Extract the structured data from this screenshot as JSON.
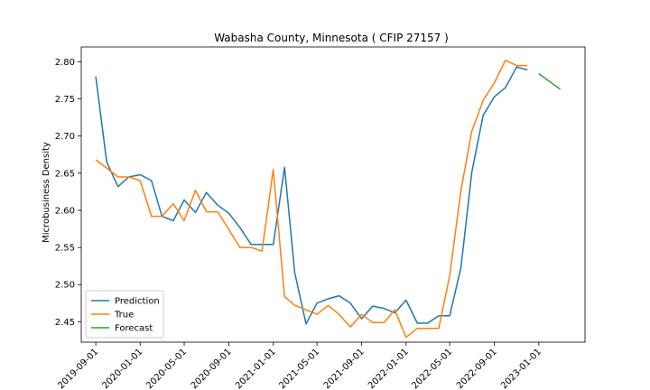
{
  "chart_data": {
    "type": "line",
    "title": "Wabasha County, Minnesota ( CFIP 27157 )",
    "xlabel": "",
    "ylabel": "Microbusiness Density",
    "xlim": [
      "2019-07-23",
      "2023-05-08"
    ],
    "ylim": [
      2.4225,
      2.82
    ],
    "x_ticks": [
      "2019-09-01",
      "2020-01-01",
      "2020-05-01",
      "2020-09-01",
      "2021-01-01",
      "2021-05-01",
      "2021-09-01",
      "2022-01-01",
      "2022-05-01",
      "2022-09-01",
      "2023-01-01"
    ],
    "y_ticks": [
      2.45,
      2.5,
      2.55,
      2.6,
      2.65,
      2.7,
      2.75,
      2.8
    ],
    "y_tick_labels": [
      "2.45",
      "2.50",
      "2.55",
      "2.60",
      "2.65",
      "2.70",
      "2.75",
      "2.80"
    ],
    "legend_position": "lower-left",
    "series": [
      {
        "name": "Prediction",
        "color": "#1f77b4",
        "x": [
          "2019-09-01",
          "2019-10-01",
          "2019-11-01",
          "2019-12-01",
          "2020-01-01",
          "2020-02-01",
          "2020-03-01",
          "2020-04-01",
          "2020-05-01",
          "2020-06-01",
          "2020-07-01",
          "2020-08-01",
          "2020-09-01",
          "2020-10-01",
          "2020-11-01",
          "2020-12-01",
          "2021-01-01",
          "2021-02-01",
          "2021-03-01",
          "2021-04-01",
          "2021-05-01",
          "2021-06-01",
          "2021-07-01",
          "2021-08-01",
          "2021-09-01",
          "2021-10-01",
          "2021-11-01",
          "2021-12-01",
          "2022-01-01",
          "2022-02-01",
          "2022-03-01",
          "2022-04-01",
          "2022-05-01",
          "2022-06-01",
          "2022-07-01",
          "2022-08-01",
          "2022-09-01",
          "2022-10-01",
          "2022-11-01",
          "2022-12-01"
        ],
        "values": [
          2.78,
          2.665,
          2.632,
          2.645,
          2.648,
          2.64,
          2.592,
          2.586,
          2.614,
          2.597,
          2.624,
          2.607,
          2.596,
          2.577,
          2.554,
          2.554,
          2.554,
          2.658,
          2.516,
          2.447,
          2.475,
          2.481,
          2.485,
          2.475,
          2.454,
          2.471,
          2.468,
          2.462,
          2.479,
          2.448,
          2.448,
          2.458,
          2.458,
          2.523,
          2.652,
          2.728,
          2.753,
          2.765,
          2.793,
          2.789
        ]
      },
      {
        "name": "True",
        "color": "#ff7f0e",
        "x": [
          "2019-09-01",
          "2019-10-01",
          "2019-11-01",
          "2019-12-01",
          "2020-01-01",
          "2020-02-01",
          "2020-03-01",
          "2020-04-01",
          "2020-05-01",
          "2020-06-01",
          "2020-07-01",
          "2020-08-01",
          "2020-09-01",
          "2020-10-01",
          "2020-11-01",
          "2020-12-01",
          "2021-01-01",
          "2021-02-01",
          "2021-03-01",
          "2021-04-01",
          "2021-05-01",
          "2021-06-01",
          "2021-07-01",
          "2021-08-01",
          "2021-09-01",
          "2021-10-01",
          "2021-11-01",
          "2021-12-01",
          "2022-01-01",
          "2022-02-01",
          "2022-03-01",
          "2022-04-01",
          "2022-05-01",
          "2022-06-01",
          "2022-07-01",
          "2022-08-01",
          "2022-09-01",
          "2022-10-01",
          "2022-11-01",
          "2022-12-01"
        ],
        "values": [
          2.668,
          2.657,
          2.645,
          2.645,
          2.64,
          2.592,
          2.592,
          2.609,
          2.586,
          2.627,
          2.598,
          2.598,
          2.574,
          2.55,
          2.55,
          2.545,
          2.655,
          2.484,
          2.472,
          2.466,
          2.46,
          2.472,
          2.46,
          2.443,
          2.46,
          2.449,
          2.449,
          2.466,
          2.429,
          2.441,
          2.441,
          2.441,
          2.512,
          2.627,
          2.707,
          2.748,
          2.772,
          2.802,
          2.795,
          2.795
        ]
      },
      {
        "name": "Forecast",
        "color": "#2ca02c",
        "x": [
          "2023-01-01",
          "2023-02-01",
          "2023-03-01"
        ],
        "values": [
          2.784,
          2.773,
          2.763
        ]
      }
    ]
  }
}
